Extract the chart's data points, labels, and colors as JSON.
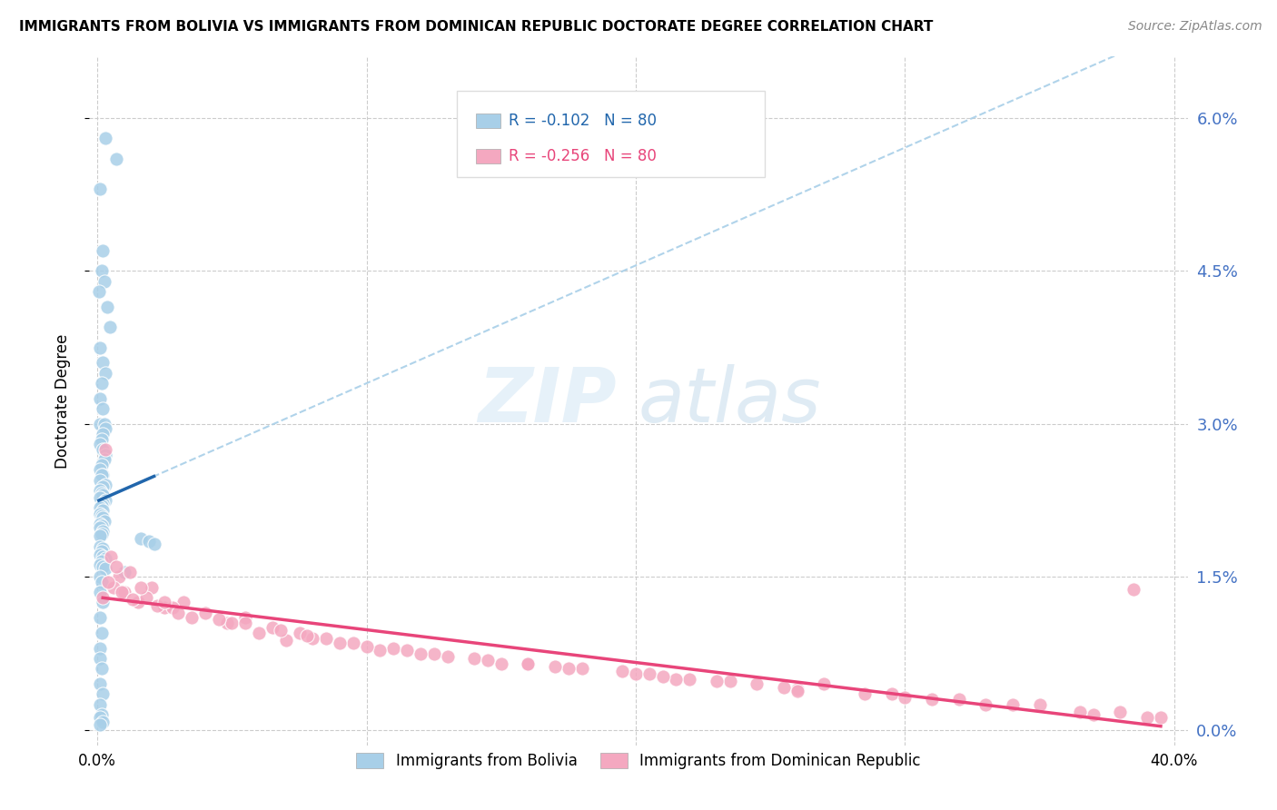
{
  "title": "IMMIGRANTS FROM BOLIVIA VS IMMIGRANTS FROM DOMINICAN REPUBLIC DOCTORATE DEGREE CORRELATION CHART",
  "source": "Source: ZipAtlas.com",
  "ylabel": "Doctorate Degree",
  "ytick_values": [
    0.0,
    1.5,
    3.0,
    4.5,
    6.0
  ],
  "xlim": [
    0.0,
    40.0
  ],
  "ylim": [
    0.0,
    6.5
  ],
  "legend_r_bolivia": "-0.102",
  "legend_n_bolivia": "80",
  "legend_r_dr": "-0.256",
  "legend_n_dr": "80",
  "legend_label_bolivia": "Immigrants from Bolivia",
  "legend_label_dr": "Immigrants from Dominican Republic",
  "color_bolivia": "#a8cfe8",
  "color_dr": "#f4a8c0",
  "color_trendline_bolivia": "#2166ac",
  "color_trendline_dr": "#e8457a",
  "color_dashed": "#a8cfe8",
  "watermark_zip": "ZIP",
  "watermark_atlas": "atlas",
  "bolivia_x": [
    0.3,
    0.7,
    0.1,
    0.2,
    0.15,
    0.25,
    0.05,
    0.35,
    0.45,
    0.1,
    0.2,
    0.3,
    0.15,
    0.1,
    0.2,
    0.1,
    0.25,
    0.3,
    0.2,
    0.15,
    0.1,
    0.2,
    0.3,
    0.25,
    0.15,
    0.1,
    0.2,
    0.15,
    0.1,
    0.3,
    0.2,
    0.1,
    0.15,
    0.2,
    0.1,
    0.3,
    0.2,
    0.15,
    0.1,
    0.2,
    0.1,
    0.15,
    0.2,
    0.25,
    0.1,
    0.15,
    0.1,
    0.2,
    0.15,
    0.1,
    1.6,
    1.9,
    2.1,
    0.1,
    0.2,
    0.15,
    0.1,
    0.2,
    0.3,
    0.15,
    0.1,
    0.2,
    0.3,
    1.0,
    0.1,
    0.15,
    0.1,
    0.2,
    0.1,
    0.15,
    0.1,
    0.1,
    0.15,
    0.1,
    0.2,
    0.1,
    0.15,
    0.1,
    0.2,
    0.1
  ],
  "bolivia_y": [
    5.8,
    5.6,
    5.3,
    4.7,
    4.5,
    4.4,
    4.3,
    4.15,
    3.95,
    3.75,
    3.6,
    3.5,
    3.4,
    3.25,
    3.15,
    3.0,
    3.0,
    2.95,
    2.9,
    2.85,
    2.8,
    2.75,
    2.7,
    2.65,
    2.6,
    2.55,
    2.5,
    2.5,
    2.45,
    2.4,
    2.38,
    2.35,
    2.32,
    2.3,
    2.28,
    2.25,
    2.22,
    2.2,
    2.18,
    2.15,
    2.12,
    2.1,
    2.08,
    2.05,
    2.02,
    2.0,
    1.98,
    1.95,
    1.92,
    1.9,
    1.88,
    1.85,
    1.82,
    1.8,
    1.78,
    1.75,
    1.72,
    1.7,
    1.68,
    1.65,
    1.62,
    1.6,
    1.58,
    1.55,
    1.5,
    1.45,
    1.35,
    1.25,
    1.1,
    0.95,
    0.8,
    0.7,
    0.6,
    0.45,
    0.35,
    0.25,
    0.15,
    0.12,
    0.08,
    0.05
  ],
  "dr_x": [
    0.3,
    0.5,
    0.8,
    1.2,
    1.5,
    2.0,
    2.5,
    3.2,
    4.0,
    4.8,
    5.5,
    6.5,
    7.5,
    8.5,
    9.5,
    11.0,
    12.5,
    14.0,
    16.0,
    18.0,
    20.0,
    22.0,
    24.5,
    27.0,
    29.5,
    32.0,
    35.0,
    38.0,
    39.5,
    0.2,
    0.6,
    1.0,
    1.8,
    2.8,
    3.5,
    5.0,
    6.0,
    7.0,
    9.0,
    10.5,
    13.0,
    15.0,
    17.5,
    19.5,
    21.5,
    23.5,
    26.0,
    28.5,
    31.0,
    34.0,
    37.0,
    0.4,
    0.9,
    1.3,
    2.2,
    3.0,
    4.5,
    6.8,
    8.0,
    10.0,
    12.0,
    14.5,
    17.0,
    20.5,
    23.0,
    25.5,
    30.0,
    33.0,
    36.5,
    0.7,
    1.6,
    2.5,
    5.5,
    7.8,
    11.5,
    16.0,
    21.0,
    26.0,
    38.5,
    39.0
  ],
  "dr_y": [
    2.75,
    1.7,
    1.5,
    1.55,
    1.25,
    1.4,
    1.2,
    1.25,
    1.15,
    1.05,
    1.1,
    1.0,
    0.95,
    0.9,
    0.85,
    0.8,
    0.75,
    0.7,
    0.65,
    0.6,
    0.55,
    0.5,
    0.45,
    0.45,
    0.35,
    0.3,
    0.25,
    0.18,
    0.12,
    1.3,
    1.4,
    1.35,
    1.3,
    1.2,
    1.1,
    1.05,
    0.95,
    0.88,
    0.85,
    0.78,
    0.72,
    0.65,
    0.6,
    0.58,
    0.5,
    0.48,
    0.4,
    0.35,
    0.3,
    0.25,
    0.15,
    1.45,
    1.35,
    1.28,
    1.22,
    1.15,
    1.08,
    0.98,
    0.9,
    0.82,
    0.75,
    0.68,
    0.62,
    0.55,
    0.48,
    0.42,
    0.32,
    0.25,
    0.18,
    1.6,
    1.4,
    1.25,
    1.05,
    0.92,
    0.78,
    0.65,
    0.52,
    0.38,
    1.38,
    0.12
  ]
}
